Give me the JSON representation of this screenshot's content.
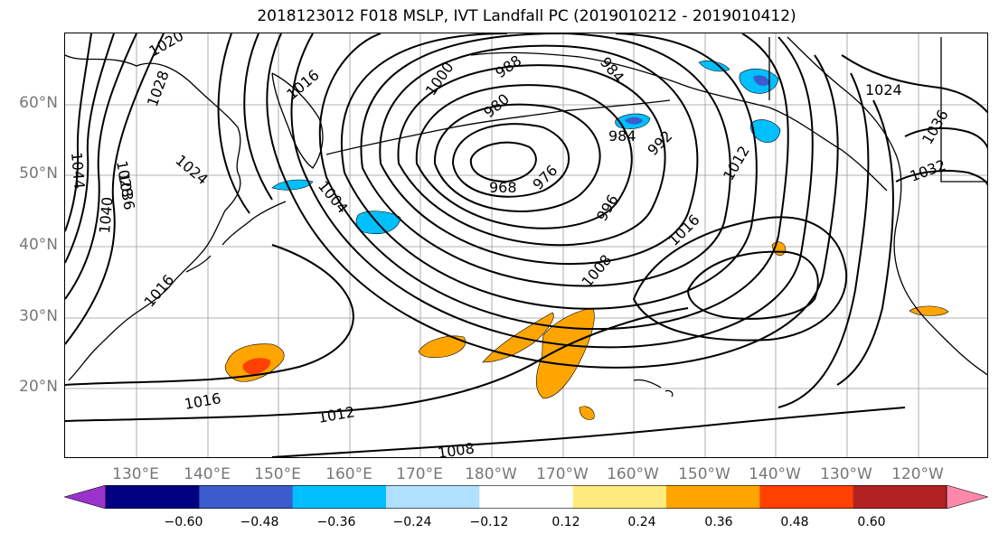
{
  "title": "2018123012 F018 MSLP, IVT Landfall PC (2019010212 - 2019010412)",
  "lat_labels": [
    "60°N",
    "50°N",
    "40°N",
    "30°N",
    "20°N"
  ],
  "lon_labels": [
    "130°E",
    "140°E",
    "150°E",
    "160°E",
    "170°E",
    "180°W",
    "170°W",
    "160°W",
    "150°W",
    "140°W",
    "130°W",
    "120°W"
  ],
  "contour_labels": [
    "1020",
    "1028",
    "1028",
    "1024",
    "1040",
    "1036",
    "1044",
    "1016",
    "1000",
    "988",
    "984",
    "980",
    "968",
    "976",
    "1004",
    "984",
    "992",
    "1012",
    "996",
    "1016",
    "1008",
    "1024",
    "1036",
    "1032",
    "1016",
    "1012",
    "1008",
    "1016"
  ],
  "colorbar": {
    "ticks": [
      "−0.60",
      "−0.48",
      "−0.36",
      "−0.24",
      "−0.12",
      "0.12",
      "0.24",
      "0.36",
      "0.48",
      "0.60"
    ],
    "colors": [
      "#9933cc",
      "#000080",
      "#3a5ccc",
      "#00bfff",
      "#b0e0ff",
      "#ffffff",
      "#ffeb80",
      "#ffa500",
      "#ff4000",
      "#b22222",
      "#ff88aa"
    ]
  }
}
